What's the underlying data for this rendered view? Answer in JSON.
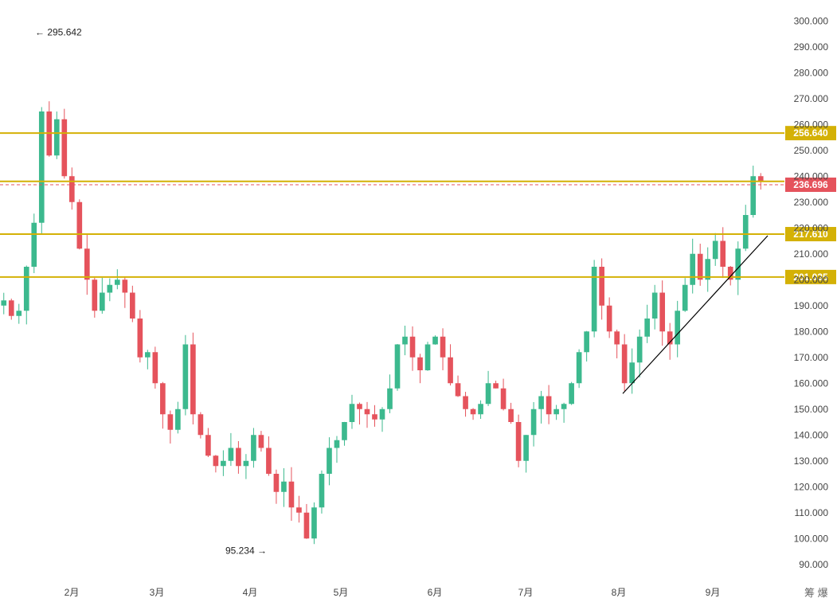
{
  "chart_data": {
    "type": "candlestick",
    "ylim": [
      85,
      305
    ],
    "y_ticks": [
      "90.000",
      "100.000",
      "110.000",
      "120.000",
      "130.000",
      "140.000",
      "150.000",
      "160.000",
      "170.000",
      "180.000",
      "190.000",
      "200.000",
      "210.000",
      "220.000",
      "230.000",
      "240.000",
      "250.000",
      "260.000",
      "270.000",
      "280.000",
      "290.000",
      "300.000"
    ],
    "x_ticks": [
      "2月",
      "3月",
      "4月",
      "5月",
      "6月",
      "7月",
      "8月",
      "9月"
    ],
    "horizontal_levels": [
      {
        "value": 256.64,
        "label": "256.640",
        "color": "#d4b106"
      },
      {
        "value": 238.0,
        "label": "",
        "color": "#d4b106"
      },
      {
        "value": 217.61,
        "label": "217.610",
        "color": "#d4b106"
      },
      {
        "value": 201.035,
        "label": "201.035",
        "color": "#d4b106"
      }
    ],
    "current_price": {
      "value": 236.696,
      "label": "236.696",
      "color": "#e5535c"
    },
    "annotations": [
      {
        "text": "← 295.642",
        "value": 295.642
      },
      {
        "text": "95.234 →",
        "value": 95.234
      }
    ],
    "trendline": {
      "from": 156,
      "to": 217
    },
    "colors": {
      "up": "#3cb98e",
      "down": "#e5535c",
      "level": "#d4b106"
    },
    "closes": [
      192,
      186,
      188,
      205,
      222,
      265,
      248,
      262,
      240,
      230,
      212,
      200,
      188,
      195,
      198,
      200,
      195,
      185,
      170,
      172,
      160,
      148,
      142,
      150,
      175,
      148,
      140,
      132,
      128,
      130,
      135,
      128,
      130,
      140,
      135,
      125,
      118,
      122,
      112,
      110,
      100,
      112,
      125,
      135,
      138,
      145,
      152,
      150,
      148,
      146,
      150,
      158,
      175,
      178,
      170,
      165,
      175,
      178,
      170,
      160,
      155,
      150,
      148,
      152,
      160,
      158,
      150,
      145,
      130,
      140,
      150,
      155,
      148,
      150,
      152,
      160,
      172,
      180,
      205,
      190,
      180,
      175,
      160,
      168,
      178,
      185,
      195,
      180,
      175,
      188,
      198,
      210,
      200,
      208,
      215,
      205,
      200,
      212,
      225,
      240,
      238
    ]
  },
  "watermark": "筹 爆"
}
